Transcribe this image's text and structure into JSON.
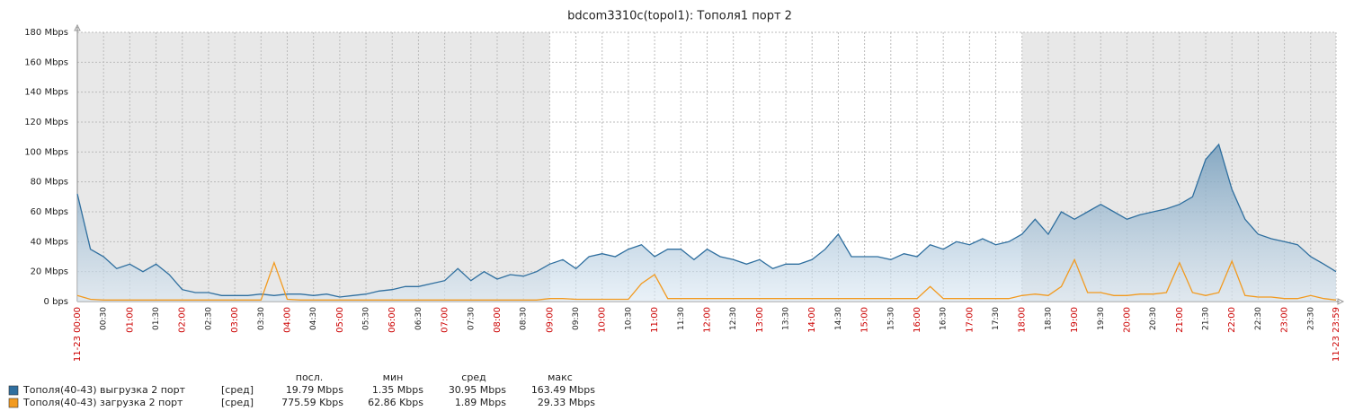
{
  "chart_data": {
    "type": "line",
    "title": "bdcom3310c(topol1): Тополя1 порт 2",
    "x": [
      0,
      15,
      30,
      45,
      60,
      75,
      90,
      105,
      120,
      135,
      150,
      165,
      180,
      195,
      210,
      225,
      240,
      255,
      270,
      285,
      300,
      315,
      330,
      345,
      360,
      375,
      390,
      405,
      420,
      435,
      450,
      465,
      480,
      495,
      510,
      525,
      540,
      555,
      570,
      585,
      600,
      615,
      630,
      645,
      660,
      675,
      690,
      705,
      720,
      735,
      750,
      765,
      780,
      795,
      810,
      825,
      840,
      855,
      870,
      885,
      900,
      915,
      930,
      945,
      960,
      975,
      990,
      1005,
      1020,
      1035,
      1050,
      1065,
      1080,
      1095,
      1110,
      1125,
      1140,
      1155,
      1170,
      1185,
      1200,
      1215,
      1230,
      1245,
      1260,
      1275,
      1290,
      1305,
      1320,
      1335,
      1350,
      1365,
      1380,
      1395,
      1410,
      1425,
      1439
    ],
    "xlim": [
      0,
      1439
    ],
    "xticks": [
      {
        "value": 0,
        "label": "11-23 00:00"
      },
      {
        "value": 30,
        "label": "00:30"
      },
      {
        "value": 60,
        "label": "01:00"
      },
      {
        "value": 90,
        "label": "01:30"
      },
      {
        "value": 120,
        "label": "02:00"
      },
      {
        "value": 150,
        "label": "02:30"
      },
      {
        "value": 180,
        "label": "03:00"
      },
      {
        "value": 210,
        "label": "03:30"
      },
      {
        "value": 240,
        "label": "04:00"
      },
      {
        "value": 270,
        "label": "04:30"
      },
      {
        "value": 300,
        "label": "05:00"
      },
      {
        "value": 330,
        "label": "05:30"
      },
      {
        "value": 360,
        "label": "06:00"
      },
      {
        "value": 390,
        "label": "06:30"
      },
      {
        "value": 420,
        "label": "07:00"
      },
      {
        "value": 450,
        "label": "07:30"
      },
      {
        "value": 480,
        "label": "08:00"
      },
      {
        "value": 510,
        "label": "08:30"
      },
      {
        "value": 540,
        "label": "09:00"
      },
      {
        "value": 570,
        "label": "09:30"
      },
      {
        "value": 600,
        "label": "10:00"
      },
      {
        "value": 630,
        "label": "10:30"
      },
      {
        "value": 660,
        "label": "11:00"
      },
      {
        "value": 690,
        "label": "11:30"
      },
      {
        "value": 720,
        "label": "12:00"
      },
      {
        "value": 750,
        "label": "12:30"
      },
      {
        "value": 780,
        "label": "13:00"
      },
      {
        "value": 810,
        "label": "13:30"
      },
      {
        "value": 840,
        "label": "14:00"
      },
      {
        "value": 870,
        "label": "14:30"
      },
      {
        "value": 900,
        "label": "15:00"
      },
      {
        "value": 930,
        "label": "15:30"
      },
      {
        "value": 960,
        "label": "16:00"
      },
      {
        "value": 990,
        "label": "16:30"
      },
      {
        "value": 1020,
        "label": "17:00"
      },
      {
        "value": 1050,
        "label": "17:30"
      },
      {
        "value": 1080,
        "label": "18:00"
      },
      {
        "value": 1110,
        "label": "18:30"
      },
      {
        "value": 1140,
        "label": "19:00"
      },
      {
        "value": 1170,
        "label": "19:30"
      },
      {
        "value": 1200,
        "label": "20:00"
      },
      {
        "value": 1230,
        "label": "20:30"
      },
      {
        "value": 1260,
        "label": "21:00"
      },
      {
        "value": 1290,
        "label": "21:30"
      },
      {
        "value": 1320,
        "label": "22:00"
      },
      {
        "value": 1350,
        "label": "22:30"
      },
      {
        "value": 1380,
        "label": "23:00"
      },
      {
        "value": 1410,
        "label": "23:30"
      },
      {
        "value": 1439,
        "label": "11-23 23:59"
      }
    ],
    "ylim": [
      0,
      180
    ],
    "yticks": [
      {
        "value": 0,
        "label": "0 bps"
      },
      {
        "value": 20,
        "label": "20 Mbps"
      },
      {
        "value": 40,
        "label": "40 Mbps"
      },
      {
        "value": 60,
        "label": "60 Mbps"
      },
      {
        "value": 80,
        "label": "80 Mbps"
      },
      {
        "value": 100,
        "label": "100 Mbps"
      },
      {
        "value": 120,
        "label": "120 Mbps"
      },
      {
        "value": 140,
        "label": "140 Mbps"
      },
      {
        "value": 160,
        "label": "160 Mbps"
      },
      {
        "value": 180,
        "label": "180 Mbps"
      }
    ],
    "grid": true,
    "shaded_periods": [
      [
        0,
        540
      ],
      [
        1080,
        1439
      ]
    ],
    "legend_headers": [
      "посл.",
      "мин",
      "сред",
      "макс"
    ],
    "series": [
      {
        "name": "Тополя(40-43) выгрузка 2 порт",
        "color": "#2f6f9f",
        "fill": true,
        "function": "[сред]",
        "stats": [
          "19.79 Mbps",
          "1.35 Mbps",
          "30.95 Mbps",
          "163.49 Mbps"
        ],
        "values": [
          72,
          35,
          30,
          22,
          25,
          20,
          25,
          18,
          8,
          6,
          6,
          4,
          4,
          4,
          5,
          4,
          5,
          5,
          4,
          5,
          3,
          4,
          5,
          7,
          8,
          10,
          10,
          12,
          14,
          22,
          14,
          20,
          15,
          18,
          17,
          20,
          25,
          28,
          22,
          30,
          32,
          30,
          35,
          38,
          30,
          35,
          35,
          28,
          35,
          30,
          28,
          25,
          28,
          22,
          25,
          25,
          28,
          35,
          45,
          30,
          30,
          30,
          28,
          32,
          30,
          38,
          35,
          40,
          38,
          42,
          38,
          40,
          45,
          55,
          45,
          60,
          55,
          60,
          65,
          60,
          55,
          58,
          60,
          62,
          65,
          70,
          95,
          105,
          75,
          55,
          45,
          42,
          40,
          38,
          30,
          25,
          20
        ]
      },
      {
        "name": "Тополя(40-43) загрузка 2 порт",
        "color": "#f29a1f",
        "fill": false,
        "function": "[сред]",
        "stats": [
          "775.59 Kbps",
          "62.86 Kbps",
          "1.89 Mbps",
          "29.33 Mbps"
        ],
        "values": [
          4,
          1.5,
          1,
          1,
          1,
          1,
          1,
          1,
          1,
          1,
          1,
          1,
          1,
          1,
          1,
          26,
          1.5,
          1,
          1,
          1,
          1,
          1,
          1,
          1,
          1,
          1,
          1,
          1,
          1,
          1,
          1,
          1,
          1,
          1,
          1,
          1,
          2,
          2,
          1.5,
          1.5,
          1.5,
          1.5,
          1.5,
          12,
          18,
          2,
          2,
          2,
          2,
          2,
          2,
          2,
          2,
          2,
          2,
          2,
          2,
          2,
          2,
          2,
          2,
          2,
          2,
          2,
          2,
          10,
          2,
          2,
          2,
          2,
          2,
          2,
          4,
          5,
          4,
          10,
          28,
          6,
          6,
          4,
          4,
          5,
          5,
          6,
          26,
          6,
          4,
          6,
          27,
          4,
          3,
          3,
          2,
          2,
          4,
          2,
          1
        ]
      }
    ]
  }
}
